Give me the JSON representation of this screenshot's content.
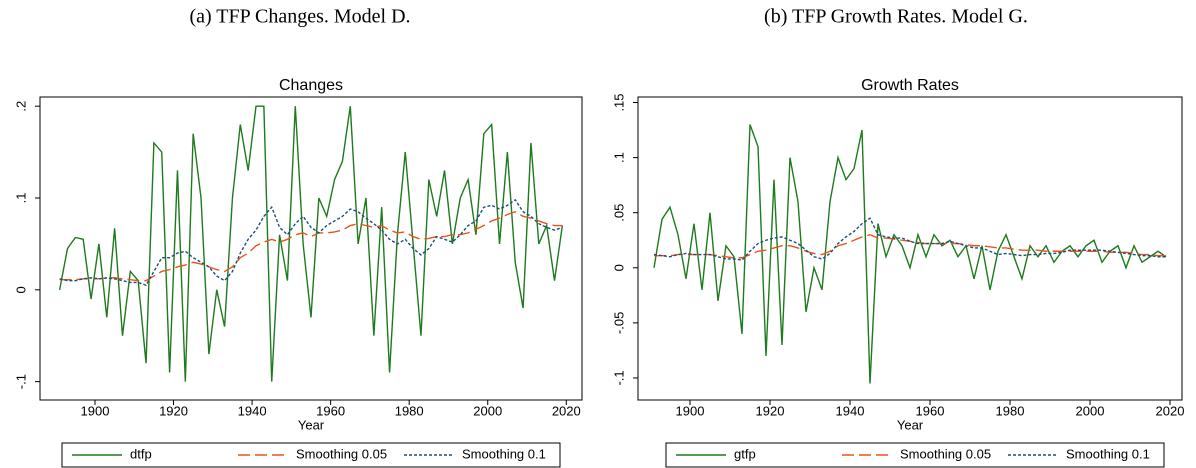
{
  "chart_data": [
    {
      "type": "line",
      "caption": "(a) TFP Changes. Model D.",
      "title": "Changes",
      "xlabel": "Year",
      "x": [
        1891,
        1893,
        1895,
        1897,
        1899,
        1901,
        1903,
        1905,
        1907,
        1909,
        1911,
        1913,
        1915,
        1917,
        1919,
        1921,
        1923,
        1925,
        1927,
        1929,
        1931,
        1933,
        1935,
        1937,
        1939,
        1941,
        1943,
        1945,
        1947,
        1949,
        1951,
        1953,
        1955,
        1957,
        1959,
        1961,
        1963,
        1965,
        1967,
        1969,
        1971,
        1973,
        1975,
        1977,
        1979,
        1981,
        1983,
        1985,
        1987,
        1989,
        1991,
        1993,
        1995,
        1997,
        1999,
        2001,
        2003,
        2005,
        2007,
        2009,
        2011,
        2013,
        2015,
        2017,
        2019
      ],
      "xlim": [
        1886,
        2024
      ],
      "xticks": [
        1900,
        1920,
        1940,
        1960,
        1980,
        2000,
        2020
      ],
      "ylim": [
        -0.12,
        0.21
      ],
      "yticks": [
        {
          "value": -0.1,
          "label": "-.1"
        },
        0,
        {
          "value": 0.1,
          "label": ".1"
        },
        {
          "value": 0.2,
          "label": ".2"
        }
      ],
      "grid": false,
      "legend": "bottom",
      "series": [
        {
          "name": "dtfp",
          "color": "#1d7a1d",
          "dash": "solid",
          "values": [
            0,
            0.045,
            0.057,
            0.055,
            -0.01,
            0.05,
            -0.03,
            0.067,
            -0.05,
            0.02,
            0.01,
            -0.08,
            0.16,
            0.15,
            -0.09,
            0.13,
            -0.1,
            0.17,
            0.1,
            -0.07,
            0,
            -0.04,
            0.1,
            0.18,
            0.13,
            0.2,
            0.2,
            -0.1,
            0.06,
            0.01,
            0.2,
            0.05,
            -0.03,
            0.1,
            0.08,
            0.12,
            0.14,
            0.2,
            0.05,
            0.1,
            -0.05,
            0.09,
            -0.09,
            0.06,
            0.15,
            0.05,
            -0.05,
            0.12,
            0.08,
            0.13,
            0.05,
            0.1,
            0.12,
            0.06,
            0.17,
            0.18,
            0.05,
            0.15,
            0.03,
            -0.02,
            0.16,
            0.05,
            0.07,
            0.01,
            0.07
          ]
        },
        {
          "name": "Smoothing 0.05",
          "color": "#e8541c",
          "dash": "long",
          "values": [
            0.011,
            0.011,
            0.011,
            0.012,
            0.012,
            0.012,
            0.013,
            0.013,
            0.012,
            0.011,
            0.01,
            0.01,
            0.015,
            0.02,
            0.022,
            0.025,
            0.027,
            0.03,
            0.028,
            0.025,
            0.022,
            0.02,
            0.025,
            0.035,
            0.04,
            0.048,
            0.052,
            0.055,
            0.052,
            0.055,
            0.06,
            0.062,
            0.058,
            0.062,
            0.062,
            0.063,
            0.065,
            0.07,
            0.072,
            0.07,
            0.068,
            0.07,
            0.065,
            0.062,
            0.063,
            0.058,
            0.055,
            0.056,
            0.058,
            0.058,
            0.06,
            0.06,
            0.062,
            0.066,
            0.07,
            0.075,
            0.078,
            0.082,
            0.085,
            0.08,
            0.078,
            0.075,
            0.072,
            0.07,
            0.07
          ]
        },
        {
          "name": "Smoothing 0.1",
          "color": "#1c4f7c",
          "dash": "short",
          "values": [
            0.012,
            0.01,
            0.01,
            0.012,
            0.013,
            0.012,
            0.013,
            0.012,
            0.01,
            0.008,
            0.008,
            0.005,
            0.02,
            0.035,
            0.035,
            0.04,
            0.042,
            0.035,
            0.03,
            0.025,
            0.015,
            0.01,
            0.02,
            0.04,
            0.055,
            0.065,
            0.08,
            0.09,
            0.068,
            0.06,
            0.072,
            0.08,
            0.068,
            0.062,
            0.07,
            0.075,
            0.08,
            0.088,
            0.085,
            0.078,
            0.072,
            0.065,
            0.055,
            0.05,
            0.055,
            0.045,
            0.038,
            0.045,
            0.058,
            0.055,
            0.052,
            0.06,
            0.07,
            0.075,
            0.09,
            0.092,
            0.088,
            0.092,
            0.098,
            0.085,
            0.08,
            0.072,
            0.068,
            0.065,
            0.068
          ]
        }
      ]
    },
    {
      "type": "line",
      "caption": "(b) TFP Growth Rates. Model G.",
      "title": "Growth Rates",
      "xlabel": "Year",
      "x": [
        1891,
        1893,
        1895,
        1897,
        1899,
        1901,
        1903,
        1905,
        1907,
        1909,
        1911,
        1913,
        1915,
        1917,
        1919,
        1921,
        1923,
        1925,
        1927,
        1929,
        1931,
        1933,
        1935,
        1937,
        1939,
        1941,
        1943,
        1945,
        1947,
        1949,
        1951,
        1953,
        1955,
        1957,
        1959,
        1961,
        1963,
        1965,
        1967,
        1969,
        1971,
        1973,
        1975,
        1977,
        1979,
        1981,
        1983,
        1985,
        1987,
        1989,
        1991,
        1993,
        1995,
        1997,
        1999,
        2001,
        2003,
        2005,
        2007,
        2009,
        2011,
        2013,
        2015,
        2017,
        2019
      ],
      "xlim": [
        1887,
        2023
      ],
      "xticks": [
        1900,
        1920,
        1940,
        1960,
        1980,
        2000,
        2020
      ],
      "ylim": [
        -0.12,
        0.155
      ],
      "yticks": [
        {
          "value": -0.1,
          "label": "-.1"
        },
        {
          "value": -0.05,
          "label": "-.05"
        },
        0,
        {
          "value": 0.05,
          "label": ".05"
        },
        {
          "value": 0.1,
          "label": ".1"
        },
        {
          "value": 0.15,
          "label": ".15"
        }
      ],
      "grid": false,
      "legend": "bottom",
      "series": [
        {
          "name": "gtfp",
          "color": "#1d7a1d",
          "dash": "solid",
          "values": [
            0,
            0.044,
            0.055,
            0.03,
            -0.01,
            0.04,
            -0.02,
            0.05,
            -0.03,
            0.02,
            0.01,
            -0.06,
            0.13,
            0.11,
            -0.08,
            0.08,
            -0.07,
            0.1,
            0.06,
            -0.04,
            0,
            -0.02,
            0.06,
            0.1,
            0.08,
            0.09,
            0.125,
            -0.105,
            0.04,
            0.01,
            0.03,
            0.02,
            0,
            0.03,
            0.01,
            0.03,
            0.02,
            0.025,
            0.01,
            0.02,
            -0.01,
            0.02,
            -0.02,
            0.015,
            0.03,
            0.01,
            -0.01,
            0.02,
            0.01,
            0.02,
            0.005,
            0.015,
            0.02,
            0.01,
            0.02,
            0.025,
            0.005,
            0.015,
            0.02,
            0,
            0.02,
            0.005,
            0.01,
            0.015,
            0.01
          ]
        },
        {
          "name": "Smoothing 0.05",
          "color": "#e8541c",
          "dash": "long",
          "values": [
            0.011,
            0.011,
            0.011,
            0.012,
            0.012,
            0.012,
            0.012,
            0.012,
            0.011,
            0.01,
            0.009,
            0.009,
            0.012,
            0.015,
            0.016,
            0.018,
            0.02,
            0.02,
            0.018,
            0.015,
            0.013,
            0.012,
            0.015,
            0.02,
            0.022,
            0.025,
            0.028,
            0.03,
            0.027,
            0.027,
            0.026,
            0.025,
            0.024,
            0.023,
            0.022,
            0.022,
            0.022,
            0.022,
            0.022,
            0.021,
            0.02,
            0.02,
            0.019,
            0.018,
            0.018,
            0.017,
            0.016,
            0.016,
            0.016,
            0.015,
            0.015,
            0.015,
            0.015,
            0.015,
            0.015,
            0.015,
            0.015,
            0.014,
            0.014,
            0.014,
            0.013,
            0.012,
            0.012,
            0.011,
            0.011
          ]
        },
        {
          "name": "Smoothing 0.1",
          "color": "#1c4f7c",
          "dash": "short",
          "values": [
            0.012,
            0.011,
            0.01,
            0.012,
            0.013,
            0.012,
            0.012,
            0.012,
            0.01,
            0.008,
            0.008,
            0.007,
            0.015,
            0.022,
            0.025,
            0.027,
            0.028,
            0.025,
            0.022,
            0.016,
            0.01,
            0.008,
            0.013,
            0.022,
            0.028,
            0.033,
            0.04,
            0.045,
            0.03,
            0.028,
            0.027,
            0.027,
            0.024,
            0.022,
            0.022,
            0.022,
            0.022,
            0.024,
            0.022,
            0.02,
            0.018,
            0.018,
            0.015,
            0.012,
            0.013,
            0.012,
            0.011,
            0.012,
            0.012,
            0.013,
            0.013,
            0.014,
            0.016,
            0.016,
            0.016,
            0.016,
            0.016,
            0.015,
            0.014,
            0.013,
            0.012,
            0.011,
            0.011,
            0.01,
            0.01
          ]
        }
      ]
    }
  ]
}
